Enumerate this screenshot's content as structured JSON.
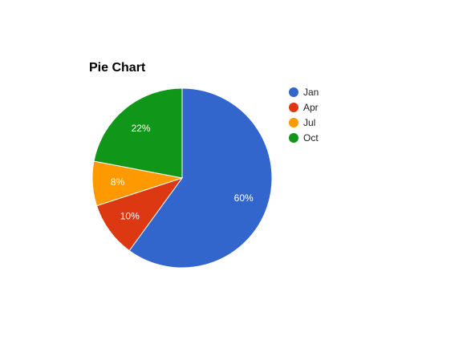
{
  "chart_data": {
    "type": "pie",
    "title": "Pie Chart",
    "categories": [
      "Jan",
      "Apr",
      "Jul",
      "Oct"
    ],
    "values": [
      60,
      10,
      8,
      22
    ],
    "value_labels": [
      "60%",
      "10%",
      "8%",
      "22%"
    ],
    "colors": [
      "#3366cc",
      "#dc3912",
      "#ff9900",
      "#109618"
    ],
    "legend": "right"
  }
}
